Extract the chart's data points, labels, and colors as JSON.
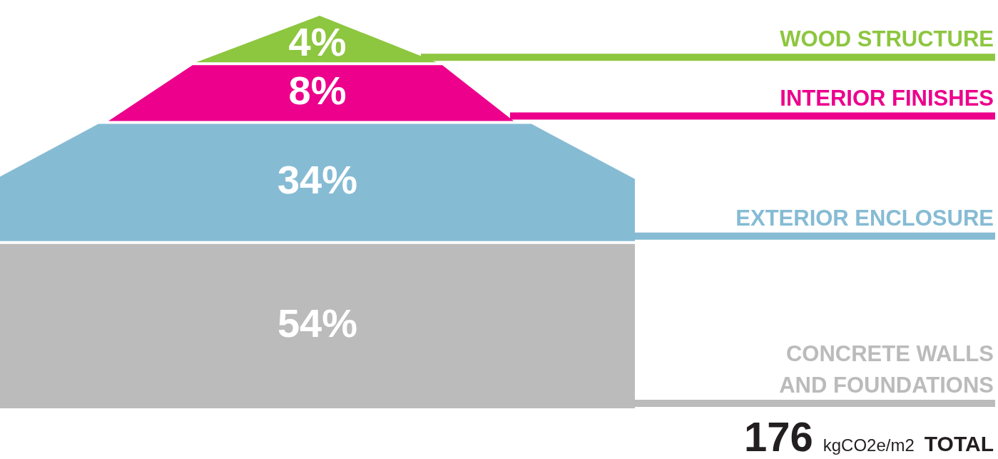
{
  "chart_data": {
    "type": "other",
    "categories": [
      "WOOD STRUCTURE",
      "INTERIOR FINISHES",
      "EXTERIOR ENCLOSURE",
      "CONCRETE WALLS AND FOUNDATIONS"
    ],
    "values": [
      4,
      8,
      34,
      54
    ],
    "value_labels": [
      "4%",
      "8%",
      "34%",
      "54%"
    ],
    "colors": [
      "#8dc63f",
      "#ec008c",
      "#86bbd4",
      "#bbbbbb"
    ],
    "annotations": [
      "176",
      "kgCO2e/m2",
      "TOTAL"
    ]
  }
}
